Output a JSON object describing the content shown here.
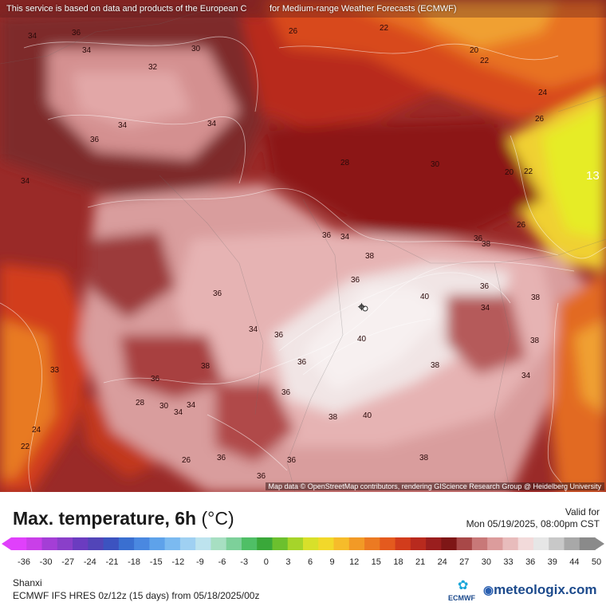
{
  "map": {
    "notice_left": "This service is based on data and products of the European C",
    "notice_right": "for Medium-range Weather Forecasts (ECMWF)",
    "attribution": "Map data © OpenStreetMap contributors, rendering GIScience Research Group @ Heidelberg University",
    "contour_labels": [
      {
        "text": "34"
      },
      {
        "text": "36"
      },
      {
        "text": "34"
      },
      {
        "text": "32"
      },
      {
        "text": "30"
      },
      {
        "text": "26"
      },
      {
        "text": "22"
      },
      {
        "text": "20"
      },
      {
        "text": "22"
      },
      {
        "text": "24"
      },
      {
        "text": "26"
      },
      {
        "text": "34"
      },
      {
        "text": "36"
      },
      {
        "text": "34"
      },
      {
        "text": "28"
      },
      {
        "text": "30"
      },
      {
        "text": "26"
      },
      {
        "text": "20"
      },
      {
        "text": "22"
      },
      {
        "text": "13"
      },
      {
        "text": "34"
      },
      {
        "text": "36"
      },
      {
        "text": "38"
      },
      {
        "text": "34"
      },
      {
        "text": "36"
      },
      {
        "text": "38"
      },
      {
        "text": "36"
      },
      {
        "text": "40"
      },
      {
        "text": "38"
      },
      {
        "text": "36"
      },
      {
        "text": "34"
      },
      {
        "text": "36"
      },
      {
        "text": "40"
      },
      {
        "text": "38"
      },
      {
        "text": "34"
      },
      {
        "text": "36"
      },
      {
        "text": "38"
      },
      {
        "text": "36"
      },
      {
        "text": "34"
      },
      {
        "text": "36"
      },
      {
        "text": "40"
      },
      {
        "text": "38"
      },
      {
        "text": "36"
      },
      {
        "text": "34"
      },
      {
        "text": "36"
      },
      {
        "text": "38"
      },
      {
        "text": "36"
      },
      {
        "text": "26"
      },
      {
        "text": "24"
      },
      {
        "text": "22"
      },
      {
        "text": "28"
      },
      {
        "text": "30"
      },
      {
        "text": "33"
      },
      {
        "text": "34"
      },
      {
        "text": "36"
      },
      {
        "text": "38"
      }
    ]
  },
  "legend": {
    "title": "Max. temperature, 6h",
    "unit": "(°C)",
    "valid_label": "Valid for",
    "valid_time": "Mon 05/19/2025, 08:00pm CST",
    "scale_labels": [
      "-36",
      "-30",
      "-27",
      "-24",
      "-21",
      "-18",
      "-15",
      "-12",
      "-9",
      "-6",
      "-3",
      "0",
      "3",
      "6",
      "9",
      "12",
      "15",
      "18",
      "21",
      "24",
      "27",
      "30",
      "33",
      "36",
      "39",
      "44",
      "50"
    ]
  },
  "footer": {
    "region": "Shanxi",
    "run_info": "ECMWF IFS HRES 0z/12z (15 days) from 05/18/2025/00z",
    "ecmwf_logo_text": "ECMWF",
    "brand": "meteologix.com"
  },
  "colors": {
    "cold_end": "#e040fb",
    "hot_end": "#8a8a8a",
    "map_deep_red": "#8c1d1d",
    "map_pink": "#e2a7a7",
    "map_hot_white": "#f2e9e9",
    "map_orange": "#f08020",
    "map_yellow": "#e8e82a"
  }
}
